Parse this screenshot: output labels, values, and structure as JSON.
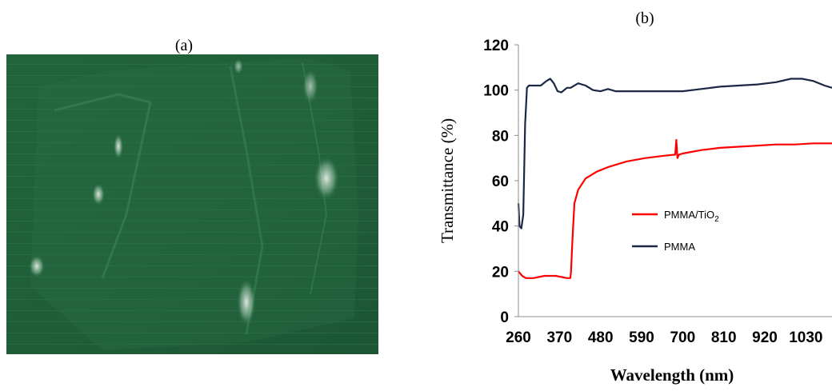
{
  "panel_a": {
    "label": "(a)"
  },
  "panel_b": {
    "label": "(b)"
  },
  "chart_data": {
    "type": "line",
    "xlabel": "Wavelength (nm)",
    "ylabel": "Transmittance (%)",
    "xlim": [
      260,
      1100
    ],
    "ylim": [
      0,
      120
    ],
    "xticks": [
      260,
      370,
      480,
      590,
      700,
      810,
      920,
      1030
    ],
    "yticks": [
      0,
      20,
      40,
      60,
      80,
      100,
      120
    ],
    "grid": false,
    "legend_position": "center-right",
    "series": [
      {
        "name": "PMMA/TiO",
        "name_subscript": "2",
        "color": "#ff0000",
        "x": [
          260,
          270,
          280,
          300,
          330,
          360,
          390,
          399,
          401,
          405,
          410,
          420,
          440,
          470,
          500,
          550,
          600,
          650,
          680,
          683,
          686,
          690,
          700,
          750,
          800,
          850,
          900,
          950,
          1000,
          1050,
          1100
        ],
        "y": [
          20,
          18,
          17,
          17,
          18,
          18,
          17,
          17,
          20,
          35,
          50,
          56,
          61,
          64,
          66,
          68.5,
          70,
          71,
          71.5,
          78,
          70,
          71.5,
          72,
          73.5,
          74.5,
          75,
          75.5,
          76,
          76,
          76.5,
          76.5
        ]
      },
      {
        "name": "PMMA",
        "color": "#1a2845",
        "x": [
          260,
          263,
          268,
          273,
          278,
          283,
          288,
          300,
          320,
          335,
          345,
          355,
          365,
          375,
          390,
          400,
          420,
          440,
          460,
          480,
          500,
          520,
          560,
          600,
          650,
          700,
          750,
          800,
          850,
          900,
          950,
          990,
          1020,
          1050,
          1080,
          1100
        ],
        "y": [
          50,
          40,
          39,
          45,
          85,
          101,
          102,
          102,
          102,
          104,
          105,
          103,
          99.5,
          99,
          101,
          101,
          103,
          102,
          100,
          99.5,
          100.5,
          99.5,
          99.5,
          99.5,
          99.5,
          99.5,
          100.5,
          101.5,
          102,
          102.5,
          103.5,
          105,
          105,
          104,
          102,
          101
        ]
      }
    ]
  }
}
